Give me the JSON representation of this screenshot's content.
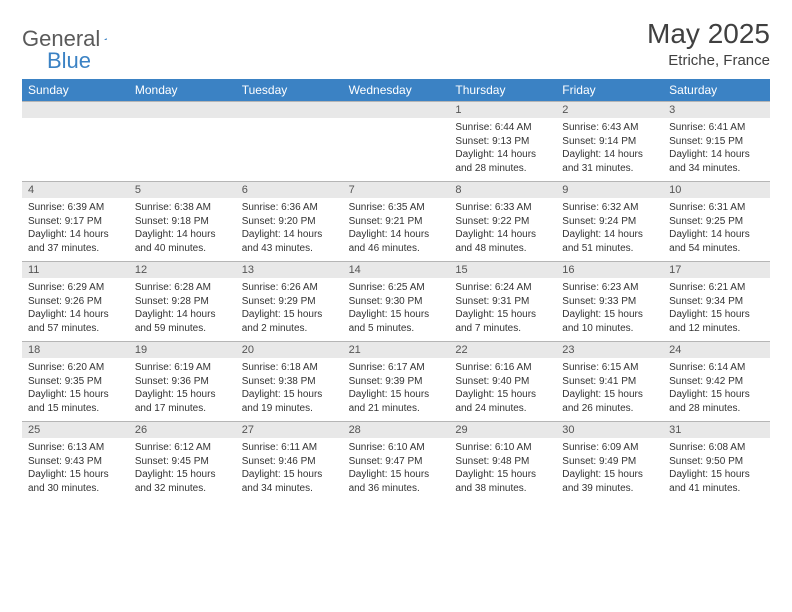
{
  "logo": {
    "text1": "General",
    "text2": "Blue"
  },
  "title": "May 2025",
  "location": "Etriche, France",
  "colors": {
    "header_bg": "#3b82c4",
    "header_text": "#ffffff",
    "daynum_bg": "#e8e8e8",
    "border": "#b5b5b5",
    "text": "#333333",
    "logo_gray": "#5a5a5a",
    "logo_blue": "#3b82c4"
  },
  "fonts": {
    "title_size": 28,
    "location_size": 15,
    "dayhead_size": 12,
    "daynum_size": 11,
    "cell_size": 10
  },
  "day_headers": [
    "Sunday",
    "Monday",
    "Tuesday",
    "Wednesday",
    "Thursday",
    "Friday",
    "Saturday"
  ],
  "weeks": [
    [
      null,
      null,
      null,
      null,
      {
        "n": "1",
        "sr": "Sunrise: 6:44 AM",
        "ss": "Sunset: 9:13 PM",
        "d1": "Daylight: 14 hours",
        "d2": "and 28 minutes."
      },
      {
        "n": "2",
        "sr": "Sunrise: 6:43 AM",
        "ss": "Sunset: 9:14 PM",
        "d1": "Daylight: 14 hours",
        "d2": "and 31 minutes."
      },
      {
        "n": "3",
        "sr": "Sunrise: 6:41 AM",
        "ss": "Sunset: 9:15 PM",
        "d1": "Daylight: 14 hours",
        "d2": "and 34 minutes."
      }
    ],
    [
      {
        "n": "4",
        "sr": "Sunrise: 6:39 AM",
        "ss": "Sunset: 9:17 PM",
        "d1": "Daylight: 14 hours",
        "d2": "and 37 minutes."
      },
      {
        "n": "5",
        "sr": "Sunrise: 6:38 AM",
        "ss": "Sunset: 9:18 PM",
        "d1": "Daylight: 14 hours",
        "d2": "and 40 minutes."
      },
      {
        "n": "6",
        "sr": "Sunrise: 6:36 AM",
        "ss": "Sunset: 9:20 PM",
        "d1": "Daylight: 14 hours",
        "d2": "and 43 minutes."
      },
      {
        "n": "7",
        "sr": "Sunrise: 6:35 AM",
        "ss": "Sunset: 9:21 PM",
        "d1": "Daylight: 14 hours",
        "d2": "and 46 minutes."
      },
      {
        "n": "8",
        "sr": "Sunrise: 6:33 AM",
        "ss": "Sunset: 9:22 PM",
        "d1": "Daylight: 14 hours",
        "d2": "and 48 minutes."
      },
      {
        "n": "9",
        "sr": "Sunrise: 6:32 AM",
        "ss": "Sunset: 9:24 PM",
        "d1": "Daylight: 14 hours",
        "d2": "and 51 minutes."
      },
      {
        "n": "10",
        "sr": "Sunrise: 6:31 AM",
        "ss": "Sunset: 9:25 PM",
        "d1": "Daylight: 14 hours",
        "d2": "and 54 minutes."
      }
    ],
    [
      {
        "n": "11",
        "sr": "Sunrise: 6:29 AM",
        "ss": "Sunset: 9:26 PM",
        "d1": "Daylight: 14 hours",
        "d2": "and 57 minutes."
      },
      {
        "n": "12",
        "sr": "Sunrise: 6:28 AM",
        "ss": "Sunset: 9:28 PM",
        "d1": "Daylight: 14 hours",
        "d2": "and 59 minutes."
      },
      {
        "n": "13",
        "sr": "Sunrise: 6:26 AM",
        "ss": "Sunset: 9:29 PM",
        "d1": "Daylight: 15 hours",
        "d2": "and 2 minutes."
      },
      {
        "n": "14",
        "sr": "Sunrise: 6:25 AM",
        "ss": "Sunset: 9:30 PM",
        "d1": "Daylight: 15 hours",
        "d2": "and 5 minutes."
      },
      {
        "n": "15",
        "sr": "Sunrise: 6:24 AM",
        "ss": "Sunset: 9:31 PM",
        "d1": "Daylight: 15 hours",
        "d2": "and 7 minutes."
      },
      {
        "n": "16",
        "sr": "Sunrise: 6:23 AM",
        "ss": "Sunset: 9:33 PM",
        "d1": "Daylight: 15 hours",
        "d2": "and 10 minutes."
      },
      {
        "n": "17",
        "sr": "Sunrise: 6:21 AM",
        "ss": "Sunset: 9:34 PM",
        "d1": "Daylight: 15 hours",
        "d2": "and 12 minutes."
      }
    ],
    [
      {
        "n": "18",
        "sr": "Sunrise: 6:20 AM",
        "ss": "Sunset: 9:35 PM",
        "d1": "Daylight: 15 hours",
        "d2": "and 15 minutes."
      },
      {
        "n": "19",
        "sr": "Sunrise: 6:19 AM",
        "ss": "Sunset: 9:36 PM",
        "d1": "Daylight: 15 hours",
        "d2": "and 17 minutes."
      },
      {
        "n": "20",
        "sr": "Sunrise: 6:18 AM",
        "ss": "Sunset: 9:38 PM",
        "d1": "Daylight: 15 hours",
        "d2": "and 19 minutes."
      },
      {
        "n": "21",
        "sr": "Sunrise: 6:17 AM",
        "ss": "Sunset: 9:39 PM",
        "d1": "Daylight: 15 hours",
        "d2": "and 21 minutes."
      },
      {
        "n": "22",
        "sr": "Sunrise: 6:16 AM",
        "ss": "Sunset: 9:40 PM",
        "d1": "Daylight: 15 hours",
        "d2": "and 24 minutes."
      },
      {
        "n": "23",
        "sr": "Sunrise: 6:15 AM",
        "ss": "Sunset: 9:41 PM",
        "d1": "Daylight: 15 hours",
        "d2": "and 26 minutes."
      },
      {
        "n": "24",
        "sr": "Sunrise: 6:14 AM",
        "ss": "Sunset: 9:42 PM",
        "d1": "Daylight: 15 hours",
        "d2": "and 28 minutes."
      }
    ],
    [
      {
        "n": "25",
        "sr": "Sunrise: 6:13 AM",
        "ss": "Sunset: 9:43 PM",
        "d1": "Daylight: 15 hours",
        "d2": "and 30 minutes."
      },
      {
        "n": "26",
        "sr": "Sunrise: 6:12 AM",
        "ss": "Sunset: 9:45 PM",
        "d1": "Daylight: 15 hours",
        "d2": "and 32 minutes."
      },
      {
        "n": "27",
        "sr": "Sunrise: 6:11 AM",
        "ss": "Sunset: 9:46 PM",
        "d1": "Daylight: 15 hours",
        "d2": "and 34 minutes."
      },
      {
        "n": "28",
        "sr": "Sunrise: 6:10 AM",
        "ss": "Sunset: 9:47 PM",
        "d1": "Daylight: 15 hours",
        "d2": "and 36 minutes."
      },
      {
        "n": "29",
        "sr": "Sunrise: 6:10 AM",
        "ss": "Sunset: 9:48 PM",
        "d1": "Daylight: 15 hours",
        "d2": "and 38 minutes."
      },
      {
        "n": "30",
        "sr": "Sunrise: 6:09 AM",
        "ss": "Sunset: 9:49 PM",
        "d1": "Daylight: 15 hours",
        "d2": "and 39 minutes."
      },
      {
        "n": "31",
        "sr": "Sunrise: 6:08 AM",
        "ss": "Sunset: 9:50 PM",
        "d1": "Daylight: 15 hours",
        "d2": "and 41 minutes."
      }
    ]
  ]
}
